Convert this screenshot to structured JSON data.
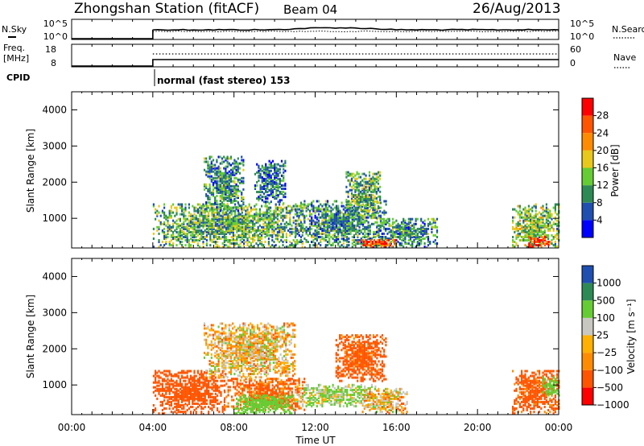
{
  "header": {
    "station": "Zhongshan Station (fitACF)",
    "beam": "Beam 04",
    "date": "26/Aug/2013"
  },
  "noise_panel": {
    "left_label": "N.Sky",
    "left_ticks": [
      "10^5",
      "10^0"
    ],
    "right_ticks": [
      "10^5",
      "10^0"
    ],
    "right_label": "N.Search"
  },
  "freq_panel": {
    "left_label_1": "Freq.",
    "left_label_2": "[MHz]",
    "left_ticks": [
      "18",
      "8"
    ],
    "right_ticks": [
      "60",
      "0"
    ],
    "right_label": "Nave"
  },
  "cpid": {
    "label": "CPID",
    "program": "normal (fast stereo) 153"
  },
  "colors": {
    "power": [
      "#0000ff",
      "#1f4fb0",
      "#2e8a55",
      "#66cc33",
      "#e8c81a",
      "#ff8c00",
      "#ff5500",
      "#ff0000"
    ],
    "velocity": [
      "#ff0000",
      "#ff5500",
      "#ff8c00",
      "#ffb000",
      "#c8c8c0",
      "#66cc33",
      "#2e8a55",
      "#1f4fb0"
    ]
  },
  "chart_data": [
    {
      "type": "heatmap",
      "name": "power",
      "ylabel": "Slant Range [km]",
      "yticks": [
        "1000",
        "2000",
        "3000",
        "4000"
      ],
      "ylim": [
        180,
        4500
      ],
      "xlim_hours": [
        0,
        24
      ],
      "colorbar_label": "Power [dB]",
      "colorbar_ticks": [
        "4",
        "8",
        "12",
        "16",
        "20",
        "24",
        "28"
      ],
      "colorbar_range": [
        0,
        32
      ],
      "echo_regions": [
        {
          "t": [
            4.0,
            11.5
          ],
          "r": [
            200,
            1400
          ],
          "level": 12
        },
        {
          "t": [
            6.5,
            8.5
          ],
          "r": [
            1200,
            2700
          ],
          "level": 10
        },
        {
          "t": [
            9.0,
            10.5
          ],
          "r": [
            1400,
            2600
          ],
          "level": 8
        },
        {
          "t": [
            11.0,
            15.5
          ],
          "r": [
            200,
            1500
          ],
          "level": 10
        },
        {
          "t": [
            13.5,
            15.2
          ],
          "r": [
            1000,
            2300
          ],
          "level": 12
        },
        {
          "t": [
            15.0,
            18.0
          ],
          "r": [
            200,
            1000
          ],
          "level": 10
        },
        {
          "t": [
            21.7,
            24.0
          ],
          "r": [
            200,
            1400
          ],
          "level": 14
        },
        {
          "t": [
            14.0,
            16.0
          ],
          "r": [
            200,
            400
          ],
          "level": 26
        },
        {
          "t": [
            22.5,
            23.5
          ],
          "r": [
            200,
            500
          ],
          "level": 28
        }
      ]
    },
    {
      "type": "heatmap",
      "name": "velocity",
      "ylabel": "Slant Range [km]",
      "yticks": [
        "1000",
        "2000",
        "3000",
        "4000"
      ],
      "ylim": [
        180,
        4500
      ],
      "xlim_hours": [
        0,
        24
      ],
      "xticks": [
        "00:00",
        "04:00",
        "08:00",
        "12:00",
        "16:00",
        "20:00",
        "00:00"
      ],
      "xlabel": "Time UT",
      "colorbar_label": "Velocity [m s⁻¹]",
      "colorbar_ticks": [
        "1000",
        "500",
        "100",
        "25",
        "−25",
        "−100",
        "−500",
        "−1000"
      ],
      "echo_regions": [
        {
          "t": [
            4.0,
            7.5
          ],
          "r": [
            200,
            1400
          ],
          "level": -300
        },
        {
          "t": [
            7.5,
            11.5
          ],
          "r": [
            300,
            1200
          ],
          "level": -150
        },
        {
          "t": [
            8.0,
            11.0
          ],
          "r": [
            200,
            700
          ],
          "level": 300
        },
        {
          "t": [
            6.5,
            11.0
          ],
          "r": [
            1200,
            2700
          ],
          "level": 0
        },
        {
          "t": [
            11.0,
            15.0
          ],
          "r": [
            400,
            1000
          ],
          "level": 100
        },
        {
          "t": [
            13.0,
            15.5
          ],
          "r": [
            1100,
            2400
          ],
          "level": -200
        },
        {
          "t": [
            14.3,
            16.5
          ],
          "r": [
            200,
            900
          ],
          "level": 0
        },
        {
          "t": [
            21.7,
            24.0
          ],
          "r": [
            200,
            1400
          ],
          "level": -200
        },
        {
          "t": [
            23.2,
            24.0
          ],
          "r": [
            700,
            1200
          ],
          "level": 200
        }
      ]
    }
  ]
}
